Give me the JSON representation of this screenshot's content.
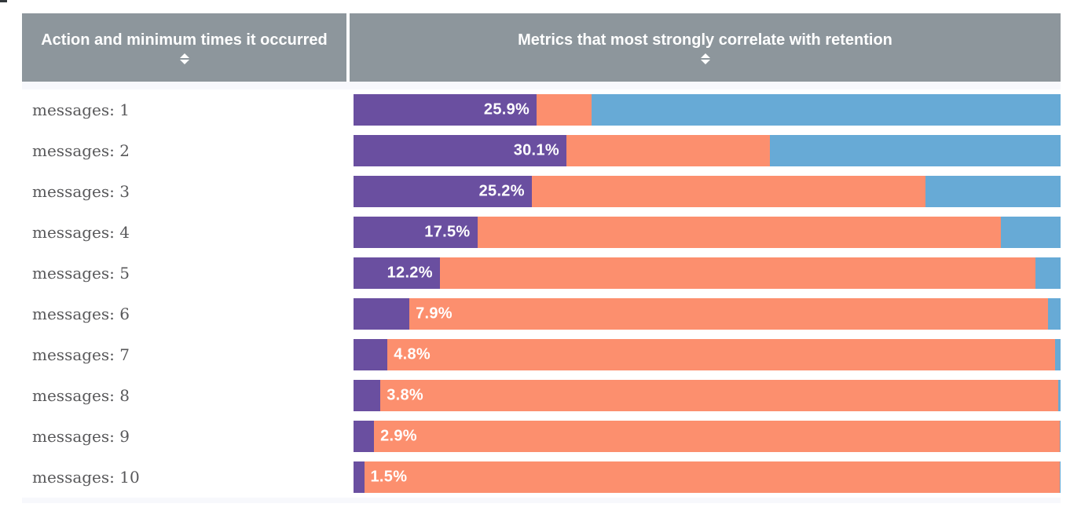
{
  "table": {
    "columns": [
      {
        "label": "Action and minimum times it occurred",
        "sort_icon": "sort-arrows-icon",
        "sortable": true
      },
      {
        "label": "Metrics that most strongly correlate with retention",
        "sort_icon": "sort-arrows-icon",
        "sortable": true
      }
    ]
  },
  "colors": {
    "header_bg": "#8d969c",
    "table_bg": "#f7f8fc",
    "row_bg": "#ffffff",
    "purple": "#6a4fa0",
    "orange": "#fc8f6e",
    "blue": "#67aad6",
    "label_text": "#58585a",
    "bar_label_text": "#ffffff"
  },
  "chart_data": {
    "type": "bar",
    "subtype": "horizontal-100pct-stacked",
    "title": "",
    "xlabel": "",
    "ylabel": "",
    "xlim": [
      0,
      100
    ],
    "grid": false,
    "legend": "none",
    "categories": [
      "messages: 1",
      "messages: 2",
      "messages: 3",
      "messages: 4",
      "messages: 5",
      "messages: 6",
      "messages: 7",
      "messages: 8",
      "messages: 9",
      "messages: 10"
    ],
    "series": [
      {
        "name": "purple-segment",
        "color": "#6a4fa0",
        "values": [
          25.9,
          30.1,
          25.2,
          17.5,
          12.2,
          7.9,
          4.8,
          3.8,
          2.9,
          1.5
        ]
      },
      {
        "name": "orange-segment",
        "color": "#fc8f6e",
        "values": [
          7.8,
          28.8,
          55.7,
          74.1,
          84.3,
          90.3,
          94.4,
          95.9,
          97.0,
          98.4
        ]
      },
      {
        "name": "blue-segment",
        "color": "#67aad6",
        "values": [
          66.3,
          41.1,
          19.1,
          8.4,
          3.5,
          1.8,
          0.8,
          0.3,
          0.1,
          0.1
        ]
      }
    ],
    "value_labels": [
      "25.9%",
      "30.1%",
      "25.2%",
      "17.5%",
      "12.2%",
      "7.9%",
      "4.8%",
      "3.8%",
      "2.9%",
      "1.5%"
    ],
    "value_label_placement_rule": "inside purple segment when purple >= 10%, otherwise just right of purple segment"
  }
}
